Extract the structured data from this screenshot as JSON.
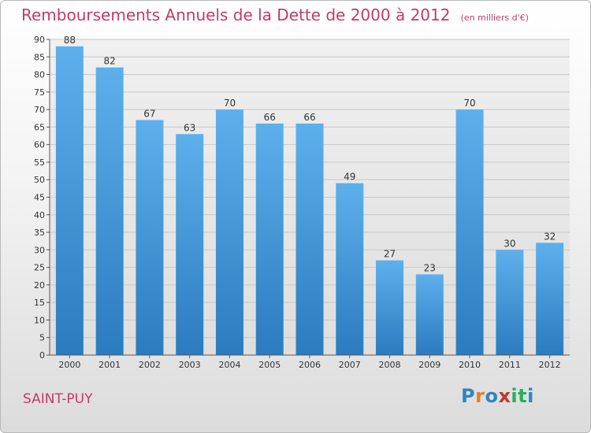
{
  "title": "Remboursements Annuels de la Dette de 2000 à 2012",
  "unit": "(en milliers d'€)",
  "commune": "SAINT-PUY",
  "logo": {
    "letters": [
      "P",
      "r",
      "o",
      "x",
      "i",
      "t",
      "i"
    ],
    "colors": [
      "#2e86c1",
      "#e67e22",
      "#2e86c1",
      "#c0392b",
      "#27ae60",
      "#27ae60",
      "#2e86c1"
    ]
  },
  "chart_data": {
    "type": "bar",
    "categories": [
      "2000",
      "2001",
      "2002",
      "2003",
      "2004",
      "2005",
      "2006",
      "2007",
      "2008",
      "2009",
      "2010",
      "2011",
      "2012"
    ],
    "values": [
      88,
      82,
      67,
      63,
      70,
      66,
      66,
      49,
      27,
      23,
      70,
      30,
      32
    ],
    "ylim": [
      0,
      90
    ],
    "yticks": [
      0,
      5,
      10,
      15,
      20,
      25,
      30,
      35,
      40,
      45,
      50,
      55,
      60,
      65,
      70,
      75,
      80,
      85,
      90
    ],
    "grid": true,
    "bar_color": "#4a9fe0"
  }
}
